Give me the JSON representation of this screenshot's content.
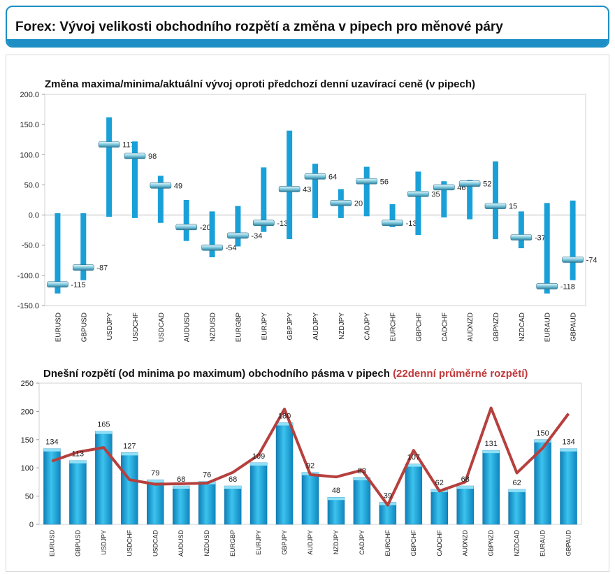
{
  "header": {
    "title": "Forex: Vývoj velikosti obchodního rozpětí a změna v pipech pro měnové páry"
  },
  "colors": {
    "accent": "#1e8fc4",
    "bar": "#1aa0d8",
    "line": "#b5403e",
    "title_red": "#c0393b"
  },
  "chart_data": [
    {
      "type": "bar",
      "subtype": "range-with-current-marker",
      "title": "Změna maxima/minima/aktuální vývoj oproti předchozí denní uzavírací ceně (v pipech)",
      "categories": [
        "EURUSD",
        "GBPUSD",
        "USDJPY",
        "USDCHF",
        "USDCAD",
        "AUDUSD",
        "NZDUSD",
        "EURGBP",
        "EURJPY",
        "GBPJPY",
        "AUDJPY",
        "NZDJPY",
        "CADJPY",
        "EURCHF",
        "GBPCHF",
        "CADCHF",
        "AUDNZD",
        "GBPNZD",
        "NZDCAD",
        "EURAUD",
        "GBPAUD"
      ],
      "series": [
        {
          "values": [
            -130,
            -108,
            -3,
            -5,
            -13,
            -43,
            -70,
            -52,
            -28,
            -40,
            -5,
            -5,
            -2,
            -20,
            -33,
            -4,
            -7,
            -40,
            -55,
            -130,
            -108
          ]
        },
        {
          "values": [
            3,
            3,
            162,
            122,
            65,
            25,
            6,
            15,
            79,
            140,
            85,
            43,
            80,
            18,
            72,
            56,
            58,
            89,
            6,
            20,
            24
          ]
        },
        {
          "values": [
            -115,
            -87,
            117,
            98,
            49,
            -20,
            -54,
            -34,
            -13,
            43,
            64,
            20,
            56,
            -13,
            35,
            46,
            52,
            15,
            -37,
            -118,
            -74
          ]
        }
      ],
      "value_labels": [
        "-115",
        "-87",
        "117",
        "98",
        "49",
        "-20",
        "-54",
        "-34",
        "-13",
        "43",
        "64",
        "20",
        "56",
        "-13",
        "35",
        "46",
        "52",
        "15",
        "-37",
        "-118",
        "-74"
      ],
      "yticks": [
        "200.0",
        "150.0",
        "100.0",
        "50.0",
        "0.0",
        "-50.0",
        "-100.0",
        "-150.0"
      ],
      "ylim": [
        -150,
        200
      ]
    },
    {
      "type": "bar",
      "title": "Dnešní rozpětí (od minima po maximum) obchodního pásma v pipech",
      "title_highlight": "(22denní průměrné rozpětí)",
      "categories": [
        "EURUSD",
        "GBPUSD",
        "USDJPY",
        "USDCHF",
        "USDCAD",
        "AUDUSD",
        "NZDUSD",
        "EURGBP",
        "EURJPY",
        "GBPJPY",
        "AUDJPY",
        "NZDJPY",
        "CADJPY",
        "EURCHF",
        "GBPCHF",
        "CADCHF",
        "AUDNZD",
        "GBPNZD",
        "NZDCAD",
        "EURAUD",
        "GBPAUD"
      ],
      "series": [
        {
          "values": [
            134,
            113,
            165,
            127,
            79,
            68,
            76,
            68,
            109,
            180,
            92,
            48,
            83,
            39,
            107,
            62,
            68,
            131,
            62,
            150,
            134
          ]
        },
        {
          "values": [
            112,
            128,
            136,
            79,
            71,
            72,
            73,
            92,
            123,
            204,
            88,
            84,
            96,
            34,
            131,
            59,
            75,
            206,
            91,
            135,
            196
          ]
        }
      ],
      "value_labels": [
        "134",
        "113",
        "165",
        "127",
        "79",
        "68",
        "76",
        "68",
        "109",
        "180",
        "92",
        "48",
        "83",
        "39",
        "107",
        "62",
        "68",
        "131",
        "62",
        "150",
        "134"
      ],
      "yticks": [
        "250",
        "200",
        "150",
        "100",
        "50",
        "0"
      ],
      "ylim": [
        0,
        250
      ]
    }
  ]
}
